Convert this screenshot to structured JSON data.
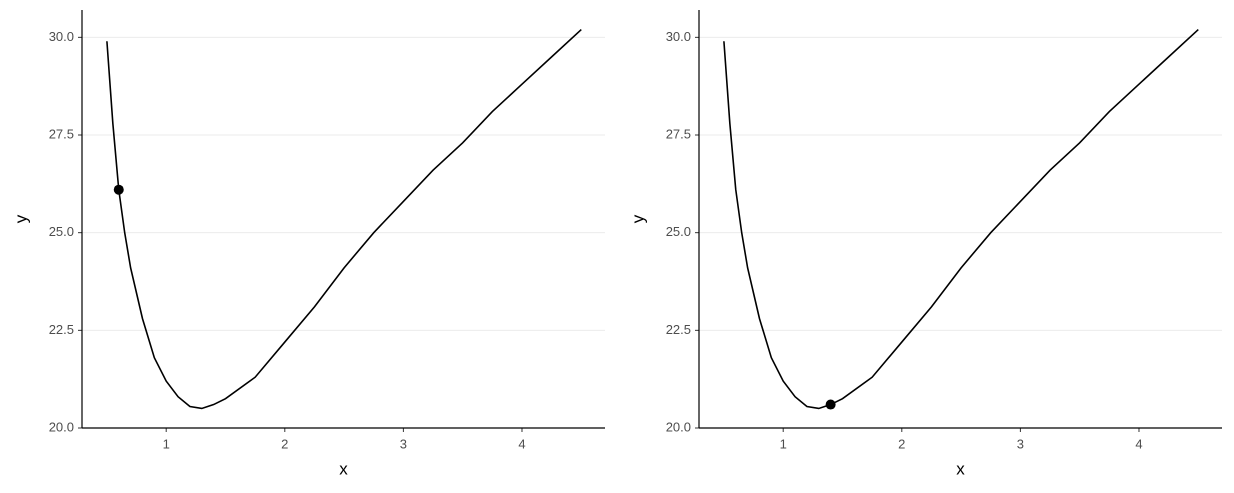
{
  "chart_data": [
    {
      "type": "line",
      "x_label": "x",
      "y_label": "y",
      "x": [
        0.5,
        0.55,
        0.6,
        0.65,
        0.7,
        0.8,
        0.9,
        1.0,
        1.1,
        1.2,
        1.3,
        1.4,
        1.5,
        1.75,
        2.0,
        2.25,
        2.5,
        2.75,
        3.0,
        3.25,
        3.5,
        3.75,
        4.0,
        4.25,
        4.5
      ],
      "series": [
        {
          "color": "#000000",
          "values": [
            29.9,
            27.8,
            26.1,
            25.0,
            24.1,
            22.8,
            21.8,
            21.2,
            20.8,
            20.55,
            20.5,
            20.6,
            20.75,
            21.3,
            22.2,
            23.1,
            24.1,
            25.0,
            25.8,
            26.6,
            27.3,
            28.1,
            28.8,
            29.5,
            30.2
          ]
        }
      ],
      "highlight": {
        "x": 0.6,
        "y": 26.1,
        "color": "#000000"
      },
      "xlim": [
        0.29,
        4.7
      ],
      "ylim": [
        20,
        30.7
      ],
      "xticks": [
        1,
        2,
        3,
        4
      ],
      "yticks": [
        {
          "value": 20,
          "label": "20.0"
        },
        {
          "value": 22.5,
          "label": "22.5"
        },
        {
          "value": 25,
          "label": "25.0"
        },
        {
          "value": 27.5,
          "label": "27.5"
        },
        {
          "value": 30,
          "label": "30.0"
        }
      ],
      "grid": "y"
    },
    {
      "type": "line",
      "x_label": "x",
      "y_label": "y",
      "x": [
        0.5,
        0.55,
        0.6,
        0.65,
        0.7,
        0.8,
        0.9,
        1.0,
        1.1,
        1.2,
        1.3,
        1.4,
        1.5,
        1.75,
        2.0,
        2.25,
        2.5,
        2.75,
        3.0,
        3.25,
        3.5,
        3.75,
        4.0,
        4.25,
        4.5
      ],
      "series": [
        {
          "color": "#000000",
          "values": [
            29.9,
            27.8,
            26.1,
            25.0,
            24.1,
            22.8,
            21.8,
            21.2,
            20.8,
            20.55,
            20.5,
            20.6,
            20.75,
            21.3,
            22.2,
            23.1,
            24.1,
            25.0,
            25.8,
            26.6,
            27.3,
            28.1,
            28.8,
            29.5,
            30.2
          ]
        }
      ],
      "highlight": {
        "x": 1.4,
        "y": 20.6,
        "color": "#000000"
      },
      "xlim": [
        0.29,
        4.7
      ],
      "ylim": [
        20,
        30.7
      ],
      "xticks": [
        1,
        2,
        3,
        4
      ],
      "yticks": [
        {
          "value": 20,
          "label": "20.0"
        },
        {
          "value": 22.5,
          "label": "22.5"
        },
        {
          "value": 25,
          "label": "25.0"
        },
        {
          "value": 27.5,
          "label": "27.5"
        },
        {
          "value": 30,
          "label": "30.0"
        }
      ],
      "grid": "y"
    }
  ]
}
